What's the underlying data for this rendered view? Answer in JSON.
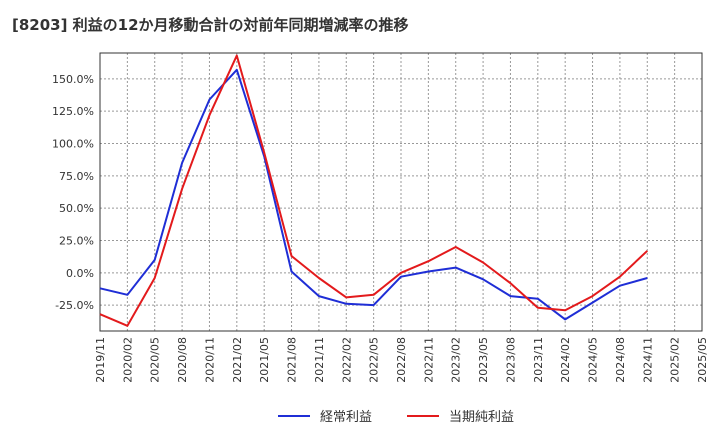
{
  "chart_data": {
    "type": "line",
    "title": "[8203]  利益の12か月移動合計の対前年同期増減率の推移",
    "xlabel": "",
    "ylabel": "",
    "x": [
      "2019/11",
      "2020/02",
      "2020/05",
      "2020/08",
      "2020/11",
      "2021/02",
      "2021/05",
      "2021/08",
      "2021/11",
      "2022/02",
      "2022/05",
      "2022/08",
      "2022/11",
      "2023/02",
      "2023/05",
      "2023/08",
      "2023/11",
      "2024/02",
      "2024/05",
      "2024/08",
      "2024/11",
      "2025/02",
      "2025/05"
    ],
    "ylim": [
      -45,
      170
    ],
    "y_ticks": [
      -25,
      0,
      25,
      50,
      75,
      100,
      125,
      150
    ],
    "y_tick_labels": [
      "-25.0%",
      "0.0%",
      "25.0%",
      "50.0%",
      "75.0%",
      "100.0%",
      "125.0%",
      "150.0%"
    ],
    "grid": true,
    "legend_position": "bottom-center",
    "series": [
      {
        "name": "経常利益",
        "color": "#1f2ed6",
        "points": [
          {
            "x": "2019/11",
            "y": -12
          },
          {
            "x": "2020/02",
            "y": -17
          },
          {
            "x": "2020/05",
            "y": 10
          },
          {
            "x": "2020/08",
            "y": 85
          },
          {
            "x": "2020/11",
            "y": 134
          },
          {
            "x": "2021/02",
            "y": 157
          },
          {
            "x": "2021/05",
            "y": 90
          },
          {
            "x": "2021/08",
            "y": 1
          },
          {
            "x": "2021/11",
            "y": -18
          },
          {
            "x": "2022/02",
            "y": -24
          },
          {
            "x": "2022/05",
            "y": -25
          },
          {
            "x": "2022/08",
            "y": -3
          },
          {
            "x": "2022/11",
            "y": 1
          },
          {
            "x": "2023/02",
            "y": 4
          },
          {
            "x": "2023/05",
            "y": -5
          },
          {
            "x": "2023/08",
            "y": -18
          },
          {
            "x": "2023/11",
            "y": -20
          },
          {
            "x": "2024/02",
            "y": -36
          },
          {
            "x": "2024/05",
            "y": -23
          },
          {
            "x": "2024/08",
            "y": -10
          },
          {
            "x": "2024/11",
            "y": -4
          }
        ]
      },
      {
        "name": "当期純利益",
        "color": "#e31a1c",
        "points": [
          {
            "x": "2019/11",
            "y": -32
          },
          {
            "x": "2020/02",
            "y": -41
          },
          {
            "x": "2020/05",
            "y": -4
          },
          {
            "x": "2020/08",
            "y": 65
          },
          {
            "x": "2020/11",
            "y": 122
          },
          {
            "x": "2021/02",
            "y": 168
          },
          {
            "x": "2021/05",
            "y": 93
          },
          {
            "x": "2021/08",
            "y": 13
          },
          {
            "x": "2021/11",
            "y": -4
          },
          {
            "x": "2022/02",
            "y": -19
          },
          {
            "x": "2022/05",
            "y": -17
          },
          {
            "x": "2022/08",
            "y": 0
          },
          {
            "x": "2022/11",
            "y": 9
          },
          {
            "x": "2023/02",
            "y": 20
          },
          {
            "x": "2023/05",
            "y": 8
          },
          {
            "x": "2023/08",
            "y": -8
          },
          {
            "x": "2023/11",
            "y": -27
          },
          {
            "x": "2024/02",
            "y": -29
          },
          {
            "x": "2024/05",
            "y": -18
          },
          {
            "x": "2024/08",
            "y": -3
          },
          {
            "x": "2024/11",
            "y": 17
          }
        ]
      }
    ]
  }
}
